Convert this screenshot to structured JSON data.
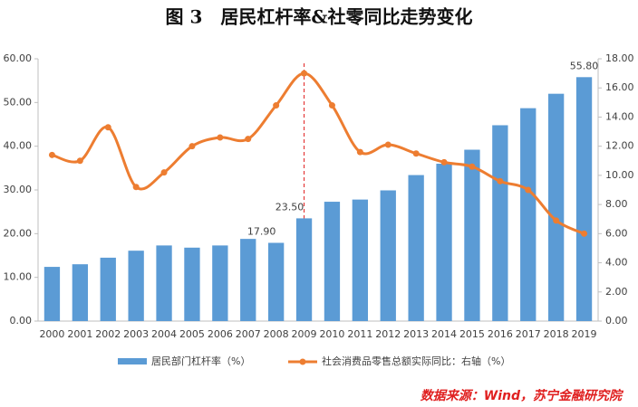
{
  "chart_data": {
    "type": "bar-line",
    "title": "图 3　居民杠杆率&社零同比走势变化",
    "source": "数据来源：Wind，苏宁金融研究院",
    "categories": [
      "2000",
      "2001",
      "2002",
      "2003",
      "2004",
      "2005",
      "2006",
      "2007",
      "2008",
      "2009",
      "2010",
      "2011",
      "2012",
      "2013",
      "2014",
      "2015",
      "2016",
      "2017",
      "2018",
      "2019"
    ],
    "series": [
      {
        "name": "居民部门杠杆率（%）",
        "type": "bar",
        "color": "#5b9bd5",
        "values": [
          12.4,
          13.0,
          14.5,
          16.1,
          17.3,
          16.8,
          17.3,
          18.8,
          17.9,
          23.5,
          27.3,
          27.8,
          29.9,
          33.4,
          36.0,
          39.2,
          44.8,
          48.7,
          52.0,
          55.8
        ],
        "value_labels": [
          null,
          null,
          null,
          null,
          null,
          null,
          null,
          null,
          "17.90",
          "23.50",
          null,
          null,
          null,
          null,
          null,
          null,
          null,
          null,
          null,
          "55.80"
        ]
      },
      {
        "name": "社会消费品零售总额实际同比：右轴（%）",
        "type": "line",
        "axis": "y2",
        "color": "#ed7d31",
        "values": [
          11.4,
          11.0,
          13.3,
          9.2,
          10.2,
          12.0,
          12.6,
          12.5,
          14.8,
          17.0,
          14.8,
          11.6,
          12.1,
          11.5,
          10.9,
          10.6,
          9.6,
          9.0,
          6.9,
          6.0
        ]
      }
    ],
    "ylim": [
      0,
      60
    ],
    "yticks": [
      {
        "value": 0,
        "label": "0.00"
      },
      {
        "value": 10,
        "label": "10.00"
      },
      {
        "value": 20,
        "label": "20.00"
      },
      {
        "value": 30,
        "label": "30.00"
      },
      {
        "value": 40,
        "label": "40.00"
      },
      {
        "value": 50,
        "label": "50.00"
      },
      {
        "value": 60,
        "label": "60.00"
      }
    ],
    "y2lim": [
      0,
      18
    ],
    "y2ticks": [
      {
        "value": 0,
        "label": "0.00"
      },
      {
        "value": 2,
        "label": "2.00"
      },
      {
        "value": 4,
        "label": "4.00"
      },
      {
        "value": 6,
        "label": "6.00"
      },
      {
        "value": 8,
        "label": "8.00"
      },
      {
        "value": 10,
        "label": "10.00"
      },
      {
        "value": 12,
        "label": "12.00"
      },
      {
        "value": 14,
        "label": "14.00"
      },
      {
        "value": 16,
        "label": "16.00"
      },
      {
        "value": 18,
        "label": "18.00"
      }
    ]
  }
}
